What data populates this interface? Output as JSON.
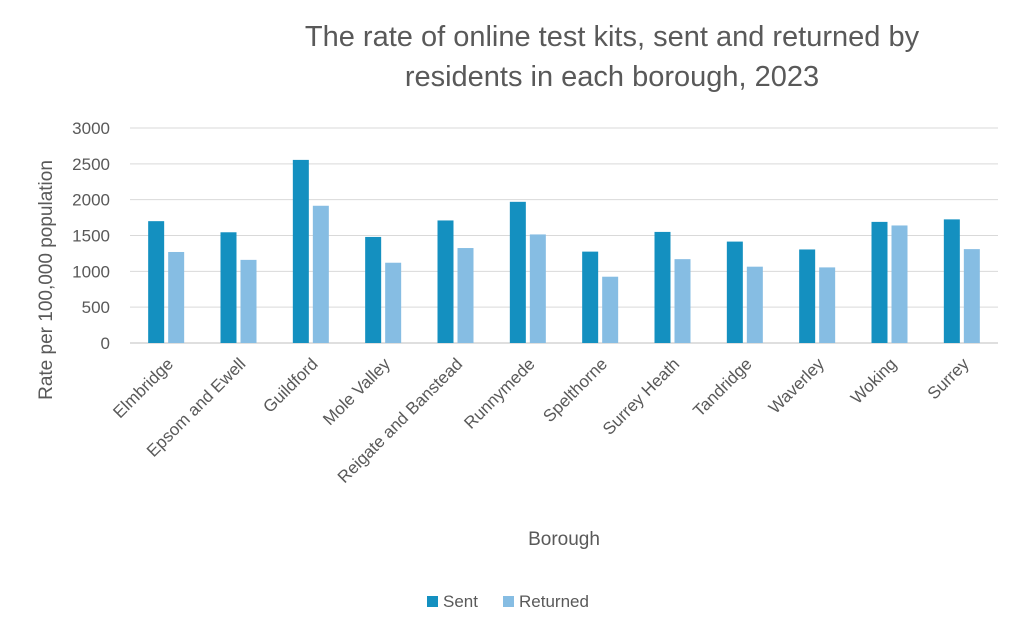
{
  "chart_data": {
    "type": "bar",
    "title": "The rate of online test kits, sent and returned by residents in each borough, 2023",
    "title_lines": [
      "The rate of online test kits, sent and returned by",
      "residents in each borough, 2023"
    ],
    "xlabel": "Borough",
    "ylabel": "Rate per 100,000 population",
    "ylim": [
      0,
      3000
    ],
    "yticks": [
      "0",
      "500",
      "1000",
      "1500",
      "2000",
      "2500",
      "3000"
    ],
    "grid": true,
    "legend_position": "bottom",
    "categories": [
      "Elmbridge",
      "Epsom and Ewell",
      "Guildford",
      "Mole Valley",
      "Reigate and Banstead",
      "Runnymede",
      "Spelthorne",
      "Surrey Heath",
      "Tandridge",
      "Waverley",
      "Woking",
      "Surrey"
    ],
    "series": [
      {
        "name": "Sent",
        "color": "#1490c0",
        "values": [
          1700,
          1545,
          2555,
          1480,
          1710,
          1970,
          1275,
          1550,
          1415,
          1305,
          1690,
          1725
        ]
      },
      {
        "name": "Returned",
        "color": "#86bde3",
        "values": [
          1270,
          1160,
          1915,
          1120,
          1325,
          1515,
          925,
          1170,
          1065,
          1055,
          1640,
          1310
        ]
      }
    ]
  }
}
